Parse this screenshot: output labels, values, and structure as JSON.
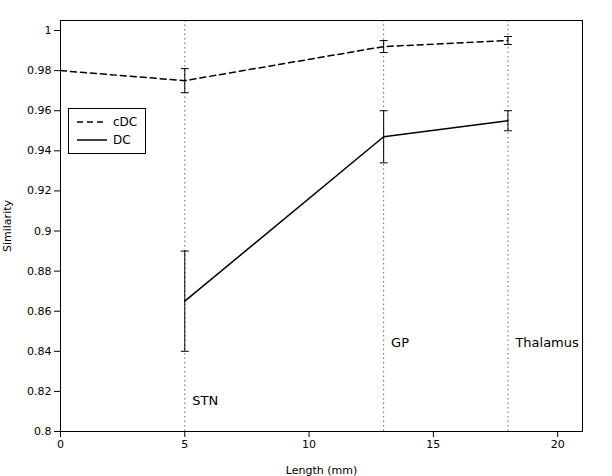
{
  "chart_data": {
    "type": "line",
    "xlabel": "Length (mm)",
    "ylabel": "Similarity",
    "xlim": [
      0,
      21
    ],
    "ylim": [
      0.8,
      1.005
    ],
    "xticks": [
      0,
      5,
      10,
      15,
      20
    ],
    "yticks": [
      0.8,
      0.82,
      0.84,
      0.86,
      0.88,
      0.9,
      0.92,
      0.94,
      0.96,
      0.98,
      1
    ],
    "color": "#000000",
    "grid": false,
    "legend": "upper left",
    "series": [
      {
        "name": "cDC",
        "line_style": "dashed",
        "x": [
          0,
          5,
          13,
          18
        ],
        "values": [
          0.98,
          0.975,
          0.992,
          0.995
        ],
        "error": [
          null,
          0.006,
          0.003,
          0.002
        ]
      },
      {
        "name": "DC",
        "line_style": "solid",
        "x": [
          5,
          13,
          18
        ],
        "values": [
          0.865,
          0.947,
          0.955
        ],
        "error_lower": [
          0.025,
          0.013,
          0.005
        ],
        "error_upper": [
          0.025,
          0.013,
          0.005
        ]
      }
    ],
    "vlines": [
      5,
      13,
      18
    ],
    "annotations": [
      {
        "text": "STN",
        "x": 5.3,
        "y": 0.813
      },
      {
        "text": "GP",
        "x": 13.3,
        "y": 0.842
      },
      {
        "text": "Thalamus",
        "x": 18.3,
        "y": 0.842
      }
    ]
  }
}
